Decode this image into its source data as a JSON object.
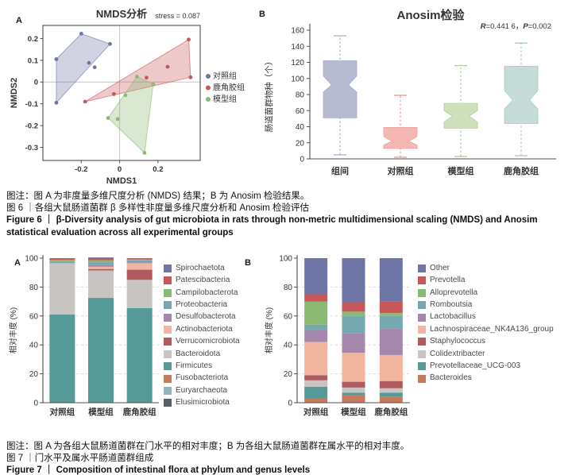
{
  "figure6": {
    "panel_a_label": "A",
    "panel_b_label": "B",
    "note": "图注：图 A 为非度量多维尺度分析 (NMDS) 结果；B 为 Anosim 检验结果。",
    "caption_cn": "图 6 ｜各组大鼠肠道菌群 β 多样性非度量多维尺度分析和 Anosim 检验评估",
    "caption_en": "Figure 6 ｜ β-Diversity analysis of gut microbiota in rats through non-metric multidimensional scaling (NMDS) and Anosim statistical evaluation across all experimental groups"
  },
  "figure7": {
    "panel_a_label": "A",
    "panel_b_label": "B",
    "note": "图注：图 A 为各组大鼠肠道菌群在门水平的相对丰度；B 为各组大鼠肠道菌群在属水平的相对丰度。",
    "caption_cn": "图 7 ｜门水平及属水平肠道菌群组成",
    "caption_en": "Figure 7 ｜ Composition of intestinal flora at phylum and genus levels"
  },
  "chart_data": [
    {
      "id": "nmds",
      "type": "scatter",
      "title": "NMDS分析",
      "subtitle": "stress = 0.087",
      "xlabel": "NMDS1",
      "ylabel": "NMDS2",
      "xlim": [
        -0.4,
        0.42
      ],
      "ylim": [
        -0.36,
        0.26
      ],
      "xticks": [
        -0.2,
        0,
        0.2
      ],
      "yticks": [
        0.2,
        0.1,
        0,
        -0.1,
        -0.2,
        -0.3
      ],
      "zero_cross_lines": true,
      "legend_position": "right",
      "series": [
        {
          "name": "对照组",
          "color": "#6f76a5",
          "points": [
            [
              -0.33,
              0.105
            ],
            [
              -0.2,
              0.222
            ],
            [
              -0.05,
              0.175
            ],
            [
              -0.16,
              0.088
            ],
            [
              -0.13,
              0.068
            ],
            [
              -0.33,
              -0.095
            ]
          ],
          "hull": [
            [
              -0.33,
              0.105
            ],
            [
              -0.2,
              0.222
            ],
            [
              -0.05,
              0.175
            ],
            [
              -0.33,
              -0.095
            ]
          ]
        },
        {
          "name": "鹿角胶组",
          "color": "#c75759",
          "points": [
            [
              0.36,
              0.195
            ],
            [
              0.25,
              0.07
            ],
            [
              0.37,
              0.022
            ],
            [
              0.14,
              0.02
            ],
            [
              -0.03,
              -0.055
            ],
            [
              -0.18,
              -0.09
            ]
          ],
          "hull": [
            [
              -0.18,
              -0.09
            ],
            [
              0.36,
              0.195
            ],
            [
              0.37,
              0.022
            ]
          ]
        },
        {
          "name": "模型组",
          "color": "#8bb974",
          "points": [
            [
              0.09,
              0.025
            ],
            [
              0.175,
              -0.01
            ],
            [
              0.03,
              -0.06
            ],
            [
              -0.06,
              -0.165
            ],
            [
              -0.01,
              -0.17
            ],
            [
              0.13,
              -0.325
            ]
          ],
          "hull": [
            [
              0.09,
              0.025
            ],
            [
              0.175,
              -0.01
            ],
            [
              0.13,
              -0.325
            ],
            [
              -0.06,
              -0.165
            ]
          ]
        }
      ]
    },
    {
      "id": "anosim",
      "type": "box",
      "title": "Anosim检验",
      "annotation": "R=0.441 6，P=0.002",
      "ylabel": "肠道菌群物种（个）",
      "ylim": [
        0,
        160
      ],
      "ytick_step": 20,
      "categories": [
        "组间",
        "对照组",
        "模型组",
        "鹿角胶组"
      ],
      "boxes": [
        {
          "category": "组间",
          "fill": "#b7bbd1",
          "stroke": "#a9aec9",
          "whisker_low": 5,
          "q1": 51,
          "notch_low": 83,
          "median": 92,
          "notch_high": 103,
          "q3": 122,
          "whisker_high": 153
        },
        {
          "category": "对照组",
          "fill": "#f4b7b4",
          "stroke": "#e89b97",
          "whisker_low": 2,
          "q1": 13,
          "notch_low": 17,
          "median": 22,
          "notch_high": 28,
          "q3": 39,
          "whisker_high": 79
        },
        {
          "category": "模型组",
          "fill": "#cfe0bc",
          "stroke": "#b2cf99",
          "whisker_low": 3,
          "q1": 38,
          "notch_low": 46,
          "median": 53,
          "notch_high": 60,
          "q3": 69,
          "whisker_high": 116
        },
        {
          "category": "鹿角胶组",
          "fill": "#c6dcd9",
          "stroke": "#a9cac6",
          "whisker_low": 4,
          "q1": 44,
          "notch_low": 62,
          "median": 73,
          "notch_high": 85,
          "q3": 115,
          "whisker_high": 144
        }
      ]
    },
    {
      "id": "phylum",
      "type": "bar",
      "stacked": true,
      "ylabel": "相对丰度 (%)",
      "ylim": [
        0,
        100
      ],
      "ytick_step": 20,
      "grid": true,
      "categories": [
        "对照组",
        "模型组",
        "鹿角胶组"
      ],
      "legend": [
        "Spirochaetota",
        "Patescibacteria",
        "Campilobacterota",
        "Proteobacteria",
        "Desulfobacterota",
        "Actinobacteriota",
        "Verrucomicrobiota",
        "Bacteroidota",
        "Firmicutes",
        "Fusobacteriota",
        "Euryarchaeota",
        "Elusimicrobiota"
      ],
      "series": [
        {
          "name": "Elusimicrobiota",
          "color": "#5a6163",
          "values": [
            0,
            0,
            0
          ]
        },
        {
          "name": "Euryarchaeota",
          "color": "#8fb5bd",
          "values": [
            0,
            0,
            0
          ]
        },
        {
          "name": "Fusobacteriota",
          "color": "#c77a5b",
          "values": [
            0,
            0,
            0
          ]
        },
        {
          "name": "Firmicutes",
          "color": "#569a97",
          "values": [
            61,
            72.5,
            65.5
          ]
        },
        {
          "name": "Bacteroidota",
          "color": "#c8c4c2",
          "values": [
            35.5,
            19,
            19.5
          ]
        },
        {
          "name": "Verrucomicrobiota",
          "color": "#ae5a5f",
          "values": [
            0,
            1,
            7
          ]
        },
        {
          "name": "Actinobacteriota",
          "color": "#f1b5a0",
          "values": [
            0,
            1.5,
            4.5
          ]
        },
        {
          "name": "Desulfobacterota",
          "color": "#a587ae",
          "values": [
            0,
            1.5,
            0.5
          ]
        },
        {
          "name": "Proteobacteria",
          "color": "#76a8b0",
          "values": [
            1.2,
            1.5,
            1.5
          ]
        },
        {
          "name": "Campilobacterota",
          "color": "#8bb974",
          "values": [
            1.2,
            1.5,
            0.5
          ]
        },
        {
          "name": "Patescibacteria",
          "color": "#c75759",
          "values": [
            1.1,
            1.5,
            1
          ]
        },
        {
          "name": "Spirochaetota",
          "color": "#6f76a5",
          "values": [
            0,
            0.5,
            0
          ]
        }
      ]
    },
    {
      "id": "genus",
      "type": "bar",
      "stacked": true,
      "ylabel": "相对丰度 (%)",
      "ylim": [
        0,
        100
      ],
      "ytick_step": 20,
      "grid": true,
      "categories": [
        "对照组",
        "模型组",
        "鹿角胶组"
      ],
      "legend": [
        "Other",
        "Prevotella",
        "Alloprevotella",
        "Romboutsia",
        "Lactobacillus",
        "Lachnospiraceae_NK4A136_group",
        "Staphylococcus",
        "Colidextribacter",
        "Prevotellaceae_UCG-003",
        "Bacteroides"
      ],
      "series": [
        {
          "name": "Bacteroides",
          "color": "#c77a5b",
          "values": [
            3,
            5,
            4
          ]
        },
        {
          "name": "Prevotellaceae_UCG-003",
          "color": "#569a97",
          "values": [
            8,
            2,
            3
          ]
        },
        {
          "name": "Colidextribacter",
          "color": "#c8c4c2",
          "values": [
            4.5,
            3.5,
            3
          ]
        },
        {
          "name": "Staphylococcus",
          "color": "#ae5a5f",
          "values": [
            3.5,
            4,
            5
          ]
        },
        {
          "name": "Lachnospiraceae_NK4A136_group",
          "color": "#f1b5a0",
          "values": [
            23,
            20,
            18
          ]
        },
        {
          "name": "Lactobacillus",
          "color": "#a587ae",
          "values": [
            8,
            13.5,
            18.5
          ]
        },
        {
          "name": "Romboutsia",
          "color": "#76a8b0",
          "values": [
            4,
            12,
            8.5
          ]
        },
        {
          "name": "Alloprevotella",
          "color": "#8bb974",
          "values": [
            16,
            3,
            2
          ]
        },
        {
          "name": "Prevotella",
          "color": "#c75759",
          "values": [
            5,
            6.5,
            8
          ]
        },
        {
          "name": "Other",
          "color": "#6f76a5",
          "values": [
            25,
            30.5,
            30
          ]
        }
      ]
    }
  ]
}
